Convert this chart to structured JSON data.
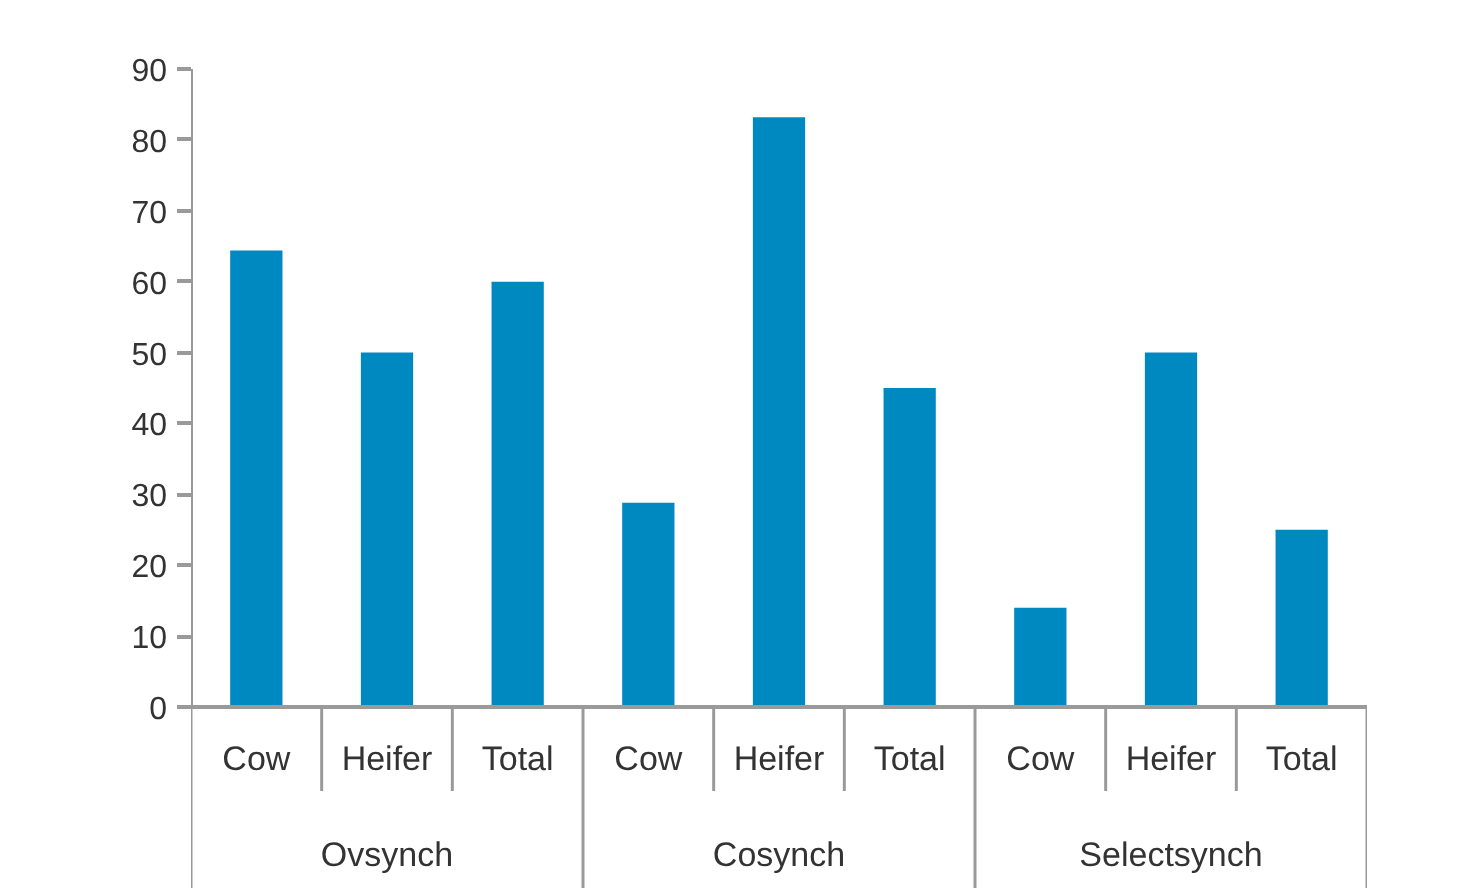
{
  "chart_data": {
    "type": "bar",
    "categories": [
      "Cow",
      "Heifer",
      "Total",
      "Cow",
      "Heifer",
      "Total",
      "Cow",
      "Heifer",
      "Total"
    ],
    "values": [
      64.4,
      50,
      60,
      28.8,
      83.2,
      45,
      14,
      50,
      25
    ],
    "color": "#0088c0",
    "ylim": [
      0,
      90
    ],
    "yticks": [
      0,
      10,
      20,
      30,
      40,
      50,
      60,
      70,
      80,
      90
    ],
    "grid": false,
    "annotations": [
      "Ovsynch",
      "Cosynch",
      "Selectsynch"
    ]
  }
}
